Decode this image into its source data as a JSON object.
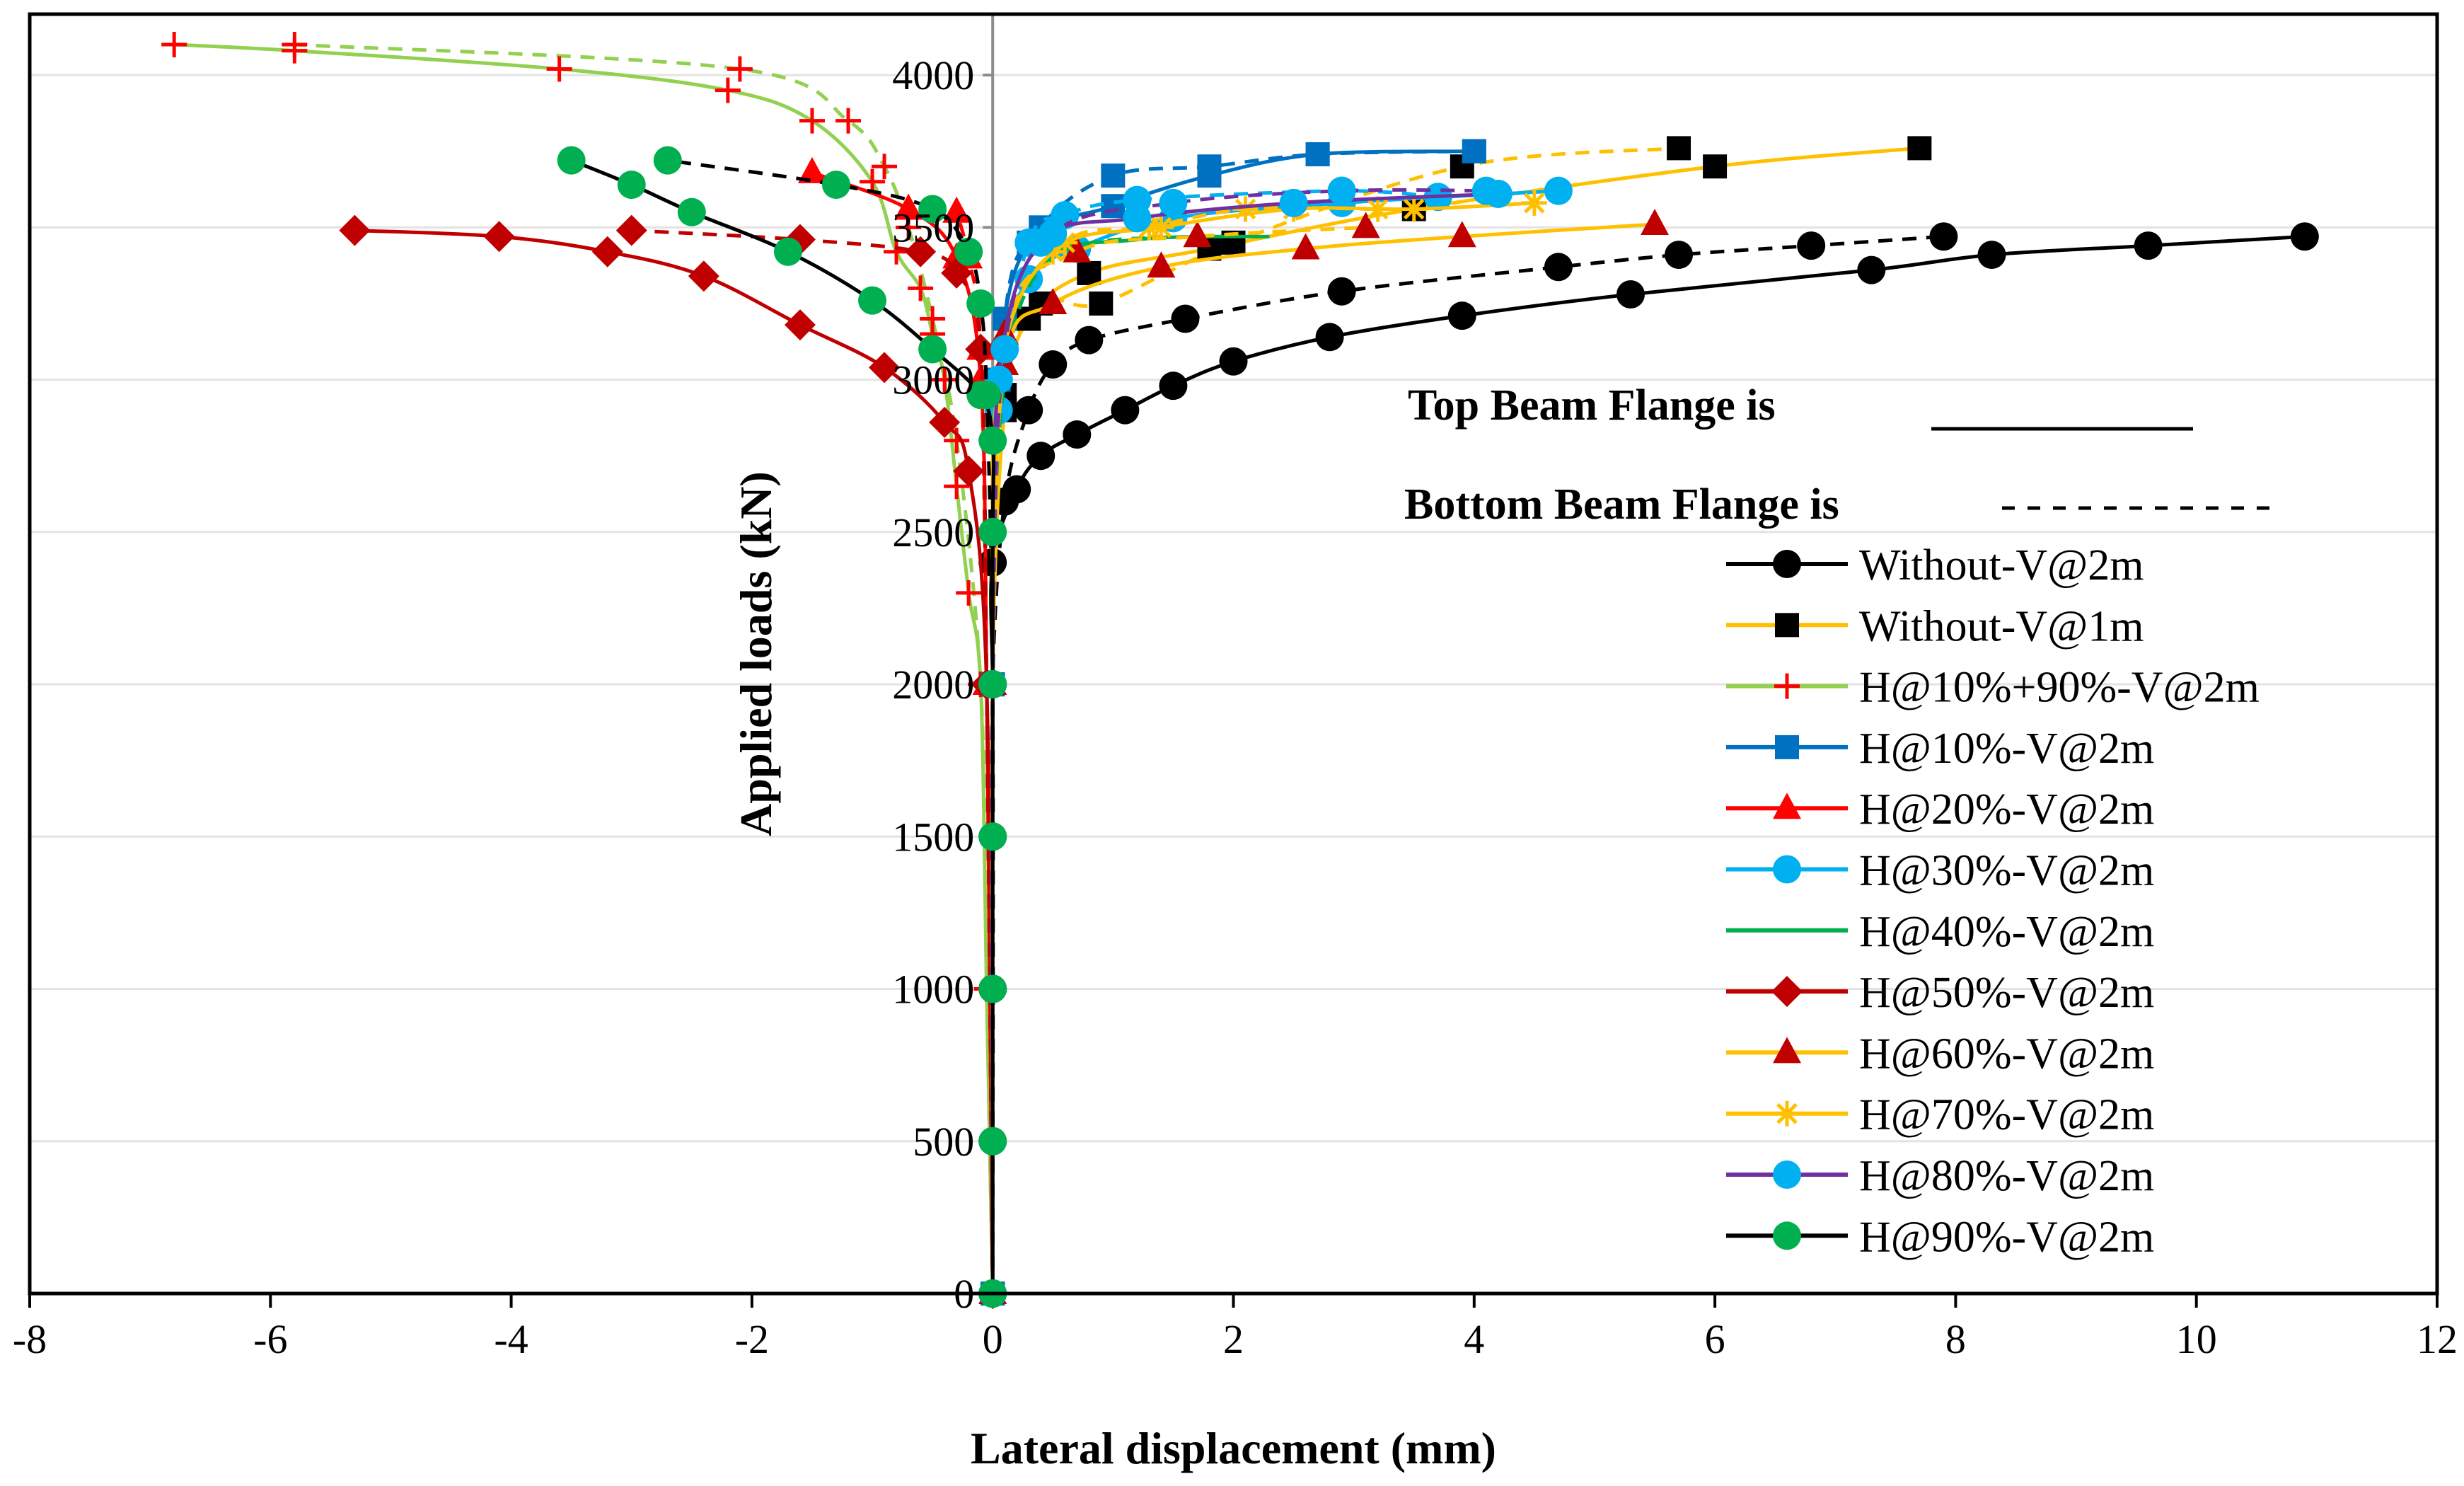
{
  "chart_data": {
    "type": "scatter",
    "xlabel": "Lateral displacement (mm)",
    "ylabel": "Applied loads (kN)",
    "xlim": [
      -8,
      12
    ],
    "ylim": [
      0,
      4200
    ],
    "xticks": [
      -8,
      -6,
      -4,
      -2,
      0,
      2,
      4,
      6,
      8,
      10,
      12
    ],
    "yticks": [
      0,
      500,
      1000,
      1500,
      2000,
      2500,
      3000,
      3500,
      4000
    ],
    "grid": "horizontal",
    "legend_position": "right",
    "annotations": {
      "top_flange": "Top Beam Flange is",
      "bottom_flange": "Bottom Beam Flange is"
    },
    "series": [
      {
        "name": "Without-V@2m",
        "color": "#000000",
        "marker": "circle",
        "top": [
          [
            0,
            0
          ],
          [
            0,
            500
          ],
          [
            0,
            1000
          ],
          [
            0,
            1500
          ],
          [
            0,
            2000
          ],
          [
            0,
            2400
          ],
          [
            0.2,
            2640
          ],
          [
            0.4,
            2750
          ],
          [
            0.7,
            2820
          ],
          [
            1.1,
            2900
          ],
          [
            1.5,
            2980
          ],
          [
            2.0,
            3060
          ],
          [
            2.8,
            3140
          ],
          [
            3.9,
            3210
          ],
          [
            5.3,
            3280
          ],
          [
            7.3,
            3360
          ],
          [
            8.3,
            3410
          ],
          [
            9.6,
            3440
          ],
          [
            10.9,
            3470
          ]
        ],
        "bottom": [
          [
            0,
            0
          ],
          [
            0,
            1000
          ],
          [
            0,
            2000
          ],
          [
            0.1,
            2600
          ],
          [
            0.3,
            2900
          ],
          [
            0.5,
            3050
          ],
          [
            0.8,
            3130
          ],
          [
            1.6,
            3200
          ],
          [
            2.9,
            3290
          ],
          [
            4.7,
            3370
          ],
          [
            5.7,
            3410
          ],
          [
            6.8,
            3440
          ],
          [
            7.9,
            3470
          ]
        ]
      },
      {
        "name": "Without-V@1m",
        "color": "#FFC000",
        "marker": "square",
        "marker_color": "#000000",
        "top": [
          [
            0,
            0
          ],
          [
            0,
            2000
          ],
          [
            0.1,
            2900
          ],
          [
            0.3,
            3200
          ],
          [
            0.8,
            3350
          ],
          [
            1.8,
            3430
          ],
          [
            3.5,
            3560
          ],
          [
            6.0,
            3700
          ],
          [
            7.7,
            3760
          ]
        ],
        "bottom": [
          [
            0,
            0
          ],
          [
            0,
            2000
          ],
          [
            0.1,
            2950
          ],
          [
            0.4,
            3250
          ],
          [
            0.9,
            3250
          ],
          [
            2.0,
            3450
          ],
          [
            3.9,
            3700
          ],
          [
            5.7,
            3760
          ]
        ]
      },
      {
        "name": "H@10%+90%-V@2m",
        "color": "#92D050",
        "marker": "plus",
        "marker_color": "#FF0000",
        "top": [
          [
            0,
            0
          ],
          [
            -0.05,
            1000
          ],
          [
            -0.1,
            2000
          ],
          [
            -0.2,
            2300
          ],
          [
            -0.3,
            2650
          ],
          [
            -0.4,
            3000
          ],
          [
            -0.5,
            3150
          ],
          [
            -0.6,
            3300
          ],
          [
            -0.8,
            3420
          ],
          [
            -1.0,
            3650
          ],
          [
            -1.5,
            3850
          ],
          [
            -2.2,
            3950
          ],
          [
            -3.6,
            4020
          ],
          [
            -5.8,
            4080
          ],
          [
            -6.8,
            4100
          ]
        ],
        "bottom": [
          [
            0,
            0
          ],
          [
            -0.05,
            1000
          ],
          [
            -0.1,
            2000
          ],
          [
            -0.3,
            2800
          ],
          [
            -0.5,
            3200
          ],
          [
            -0.7,
            3500
          ],
          [
            -0.9,
            3700
          ],
          [
            -1.2,
            3850
          ],
          [
            -2.1,
            4020
          ],
          [
            -5.8,
            4100
          ]
        ]
      },
      {
        "name": "H@10%-V@2m",
        "color": "#0070C0",
        "marker": "square",
        "top": [
          [
            0,
            0
          ],
          [
            0,
            2000
          ],
          [
            0.05,
            3000
          ],
          [
            0.3,
            3450
          ],
          [
            1.0,
            3570
          ],
          [
            1.8,
            3670
          ],
          [
            2.7,
            3740
          ],
          [
            4.0,
            3750
          ]
        ],
        "bottom": [
          [
            0,
            0
          ],
          [
            0,
            2000
          ],
          [
            0.1,
            3200
          ],
          [
            0.4,
            3500
          ],
          [
            1.0,
            3670
          ],
          [
            1.8,
            3700
          ],
          [
            2.7,
            3740
          ],
          [
            4.0,
            3750
          ]
        ]
      },
      {
        "name": "H@20%-V@2m",
        "color": "#FF0000",
        "marker": "triangle",
        "top": [
          [
            0,
            0
          ],
          [
            -0.05,
            2000
          ],
          [
            -0.1,
            3000
          ],
          [
            -0.3,
            3400
          ],
          [
            -0.7,
            3560
          ],
          [
            -1.5,
            3680
          ]
        ],
        "bottom": [
          [
            0,
            0
          ],
          [
            -0.05,
            2000
          ],
          [
            -0.1,
            3100
          ],
          [
            -0.2,
            3400
          ],
          [
            -0.3,
            3550
          ]
        ]
      },
      {
        "name": "H@30%-V@2m",
        "color": "#00B0F0",
        "marker": "circle",
        "top": [
          [
            0,
            0
          ],
          [
            0,
            2000
          ],
          [
            0.05,
            3000
          ],
          [
            0.3,
            3330
          ],
          [
            0.7,
            3430
          ],
          [
            1.5,
            3530
          ],
          [
            2.9,
            3580
          ],
          [
            4.7,
            3620
          ]
        ],
        "bottom": [
          [
            0,
            0
          ],
          [
            0,
            2000
          ],
          [
            0.05,
            2900
          ],
          [
            0.3,
            3450
          ],
          [
            0.6,
            3540
          ],
          [
            1.2,
            3590
          ],
          [
            2.9,
            3620
          ],
          [
            3.7,
            3600
          ]
        ]
      },
      {
        "name": "H@40%-V@2m",
        "color": "#00B050",
        "marker": "none",
        "top": [
          [
            0,
            0
          ],
          [
            0,
            2000
          ],
          [
            0.05,
            2950
          ],
          [
            0.4,
            3380
          ],
          [
            1.2,
            3460
          ],
          [
            2.3,
            3470
          ]
        ],
        "bottom": [
          [
            0,
            0
          ],
          [
            0,
            2000
          ],
          [
            0.1,
            3000
          ],
          [
            0.5,
            3400
          ],
          [
            1.5,
            3470
          ]
        ]
      },
      {
        "name": "H@50%-V@2m",
        "color": "#C00000",
        "marker": "diamond",
        "top": [
          [
            0,
            0
          ],
          [
            -0.05,
            2000
          ],
          [
            -0.2,
            2700
          ],
          [
            -0.4,
            2860
          ],
          [
            -0.9,
            3040
          ],
          [
            -1.6,
            3180
          ],
          [
            -2.4,
            3340
          ],
          [
            -3.2,
            3420
          ],
          [
            -4.1,
            3470
          ],
          [
            -5.3,
            3490
          ]
        ],
        "bottom": [
          [
            0,
            0
          ],
          [
            -0.05,
            2000
          ],
          [
            -0.1,
            3100
          ],
          [
            -0.3,
            3350
          ],
          [
            -0.6,
            3420
          ],
          [
            -1.6,
            3460
          ],
          [
            -3.0,
            3490
          ]
        ]
      },
      {
        "name": "H@60%-V@2m",
        "color": "#FFC000",
        "marker": "triangle",
        "marker_color": "#C00000",
        "top": [
          [
            0,
            0
          ],
          [
            0,
            2000
          ],
          [
            0.1,
            3050
          ],
          [
            0.5,
            3250
          ],
          [
            1.4,
            3370
          ],
          [
            2.6,
            3430
          ],
          [
            3.9,
            3470
          ],
          [
            5.5,
            3510
          ]
        ],
        "bottom": [
          [
            0,
            0
          ],
          [
            0,
            2000
          ],
          [
            0.1,
            3150
          ],
          [
            0.7,
            3420
          ],
          [
            1.7,
            3470
          ],
          [
            3.1,
            3500
          ]
        ]
      },
      {
        "name": "H@70%-V@2m",
        "color": "#FFC000",
        "marker": "star",
        "marker_color": "#FFC000",
        "top": [
          [
            0,
            0
          ],
          [
            0,
            2000
          ],
          [
            0.05,
            3000
          ],
          [
            0.5,
            3420
          ],
          [
            1.4,
            3500
          ],
          [
            2.5,
            3560
          ],
          [
            3.5,
            3560
          ],
          [
            4.5,
            3580
          ]
        ],
        "bottom": [
          [
            0,
            0
          ],
          [
            0,
            2000
          ],
          [
            0.1,
            3100
          ],
          [
            0.6,
            3450
          ],
          [
            1.3,
            3500
          ],
          [
            2.1,
            3560
          ],
          [
            3.2,
            3560
          ]
        ]
      },
      {
        "name": "H@80%-V@2m",
        "color": "#7030A0",
        "marker": "circle",
        "marker_color": "#00B0F0",
        "top": [
          [
            0,
            0
          ],
          [
            0,
            2000
          ],
          [
            0.05,
            3000
          ],
          [
            0.4,
            3450
          ],
          [
            1.2,
            3530
          ],
          [
            2.5,
            3580
          ],
          [
            4.2,
            3610
          ]
        ],
        "bottom": [
          [
            0,
            0
          ],
          [
            0,
            2000
          ],
          [
            0.1,
            3100
          ],
          [
            0.5,
            3480
          ],
          [
            1.5,
            3580
          ],
          [
            2.9,
            3620
          ],
          [
            4.1,
            3620
          ]
        ]
      },
      {
        "name": "H@90%-V@2m",
        "color": "#000000",
        "marker": "circle",
        "marker_color": "#00B050",
        "top": [
          [
            0,
            0
          ],
          [
            0,
            500
          ],
          [
            0,
            1000
          ],
          [
            0,
            1500
          ],
          [
            0,
            2000
          ],
          [
            0,
            2500
          ],
          [
            0,
            2800
          ],
          [
            -0.1,
            2950
          ],
          [
            -0.5,
            3100
          ],
          [
            -1.0,
            3260
          ],
          [
            -1.7,
            3420
          ],
          [
            -2.5,
            3550
          ],
          [
            -3.0,
            3640
          ],
          [
            -3.5,
            3720
          ]
        ],
        "bottom": [
          [
            0,
            0
          ],
          [
            0,
            2000
          ],
          [
            -0.05,
            2950
          ],
          [
            -0.1,
            3250
          ],
          [
            -0.2,
            3420
          ],
          [
            -0.5,
            3560
          ],
          [
            -1.3,
            3640
          ],
          [
            -2.7,
            3720
          ]
        ]
      }
    ]
  }
}
